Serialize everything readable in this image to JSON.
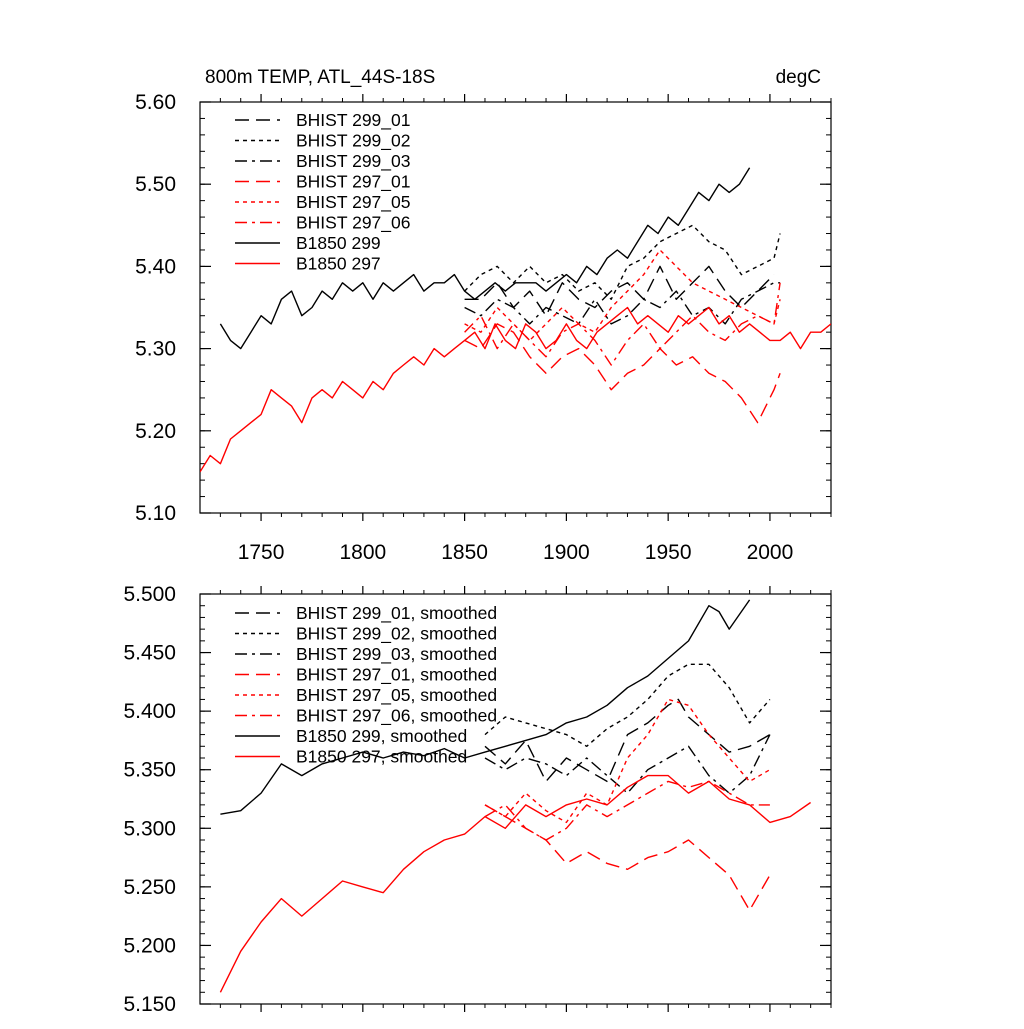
{
  "chart_data": [
    {
      "type": "line",
      "title": "800m TEMP, ATL_44S-18S",
      "units": "degC",
      "xlabel": "",
      "ylabel": "",
      "xlim": [
        1720,
        2030
      ],
      "ylim": [
        5.1,
        5.6
      ],
      "xticks": [
        1750,
        1800,
        1850,
        1900,
        1950,
        2000
      ],
      "xtick_labels": [
        "1750",
        "1800",
        "1850",
        "1900",
        "1950",
        "2000"
      ],
      "yticks": [
        5.1,
        5.2,
        5.3,
        5.4,
        5.5,
        5.6
      ],
      "ytick_labels": [
        "5.10",
        "5.20",
        "5.30",
        "5.40",
        "5.50",
        "5.60"
      ],
      "legend_position": "top-left",
      "series": [
        {
          "name": "BHIST 299_01",
          "color": "#000000",
          "dash": "dashed",
          "x": [
            1850,
            1858,
            1866,
            1874,
            1882,
            1890,
            1898,
            1906,
            1914,
            1922,
            1930,
            1938,
            1946,
            1954,
            1962,
            1970,
            1978,
            1986,
            1994,
            2002
          ],
          "values": [
            5.36,
            5.36,
            5.38,
            5.35,
            5.37,
            5.34,
            5.38,
            5.36,
            5.35,
            5.37,
            5.38,
            5.36,
            5.4,
            5.36,
            5.38,
            5.4,
            5.37,
            5.35,
            5.37,
            5.39
          ]
        },
        {
          "name": "BHIST 299_02",
          "color": "#000000",
          "dash": "dotted",
          "x": [
            1850,
            1858,
            1866,
            1874,
            1882,
            1890,
            1898,
            1906,
            1914,
            1922,
            1930,
            1938,
            1946,
            1954,
            1962,
            1970,
            1978,
            1986,
            1994,
            2002,
            2005
          ],
          "values": [
            5.37,
            5.39,
            5.4,
            5.38,
            5.4,
            5.38,
            5.39,
            5.37,
            5.38,
            5.36,
            5.4,
            5.41,
            5.43,
            5.44,
            5.45,
            5.43,
            5.42,
            5.39,
            5.4,
            5.41,
            5.44
          ]
        },
        {
          "name": "BHIST 299_03",
          "color": "#000000",
          "dash": "dashdot",
          "x": [
            1850,
            1858,
            1866,
            1874,
            1882,
            1890,
            1898,
            1906,
            1914,
            1922,
            1930,
            1938,
            1946,
            1954,
            1962,
            1970,
            1978,
            1986,
            1994,
            2002,
            2005
          ],
          "values": [
            5.35,
            5.34,
            5.36,
            5.35,
            5.33,
            5.35,
            5.34,
            5.33,
            5.36,
            5.33,
            5.34,
            5.36,
            5.35,
            5.37,
            5.34,
            5.35,
            5.33,
            5.36,
            5.37,
            5.38,
            5.38
          ]
        },
        {
          "name": "BHIST 297_01",
          "color": "#ff0000",
          "dash": "dashed",
          "x": [
            1850,
            1858,
            1866,
            1874,
            1882,
            1890,
            1898,
            1906,
            1914,
            1922,
            1930,
            1938,
            1946,
            1954,
            1962,
            1970,
            1978,
            1986,
            1994,
            2002,
            2005
          ],
          "values": [
            5.31,
            5.3,
            5.33,
            5.32,
            5.29,
            5.27,
            5.29,
            5.3,
            5.28,
            5.25,
            5.27,
            5.28,
            5.3,
            5.28,
            5.29,
            5.27,
            5.26,
            5.24,
            5.21,
            5.25,
            5.27
          ]
        },
        {
          "name": "BHIST 297_05",
          "color": "#ff0000",
          "dash": "dotted",
          "x": [
            1850,
            1858,
            1866,
            1874,
            1882,
            1890,
            1898,
            1906,
            1914,
            1922,
            1930,
            1938,
            1946,
            1954,
            1962,
            1970,
            1978,
            1986,
            1994,
            2002,
            2005
          ],
          "values": [
            5.33,
            5.32,
            5.35,
            5.33,
            5.31,
            5.33,
            5.35,
            5.33,
            5.32,
            5.35,
            5.37,
            5.39,
            5.42,
            5.4,
            5.38,
            5.37,
            5.36,
            5.35,
            5.34,
            5.33,
            5.36
          ]
        },
        {
          "name": "BHIST 297_06",
          "color": "#ff0000",
          "dash": "dashdot",
          "x": [
            1850,
            1858,
            1866,
            1874,
            1882,
            1890,
            1898,
            1906,
            1914,
            1922,
            1930,
            1938,
            1946,
            1954,
            1962,
            1970,
            1978,
            1986,
            1994,
            2002,
            2005
          ],
          "values": [
            5.32,
            5.34,
            5.3,
            5.33,
            5.31,
            5.29,
            5.32,
            5.33,
            5.31,
            5.28,
            5.31,
            5.33,
            5.3,
            5.32,
            5.34,
            5.32,
            5.31,
            5.33,
            5.34,
            5.33,
            5.38
          ]
        },
        {
          "name": "B1850 299",
          "color": "#000000",
          "dash": "solid",
          "x": [
            1730,
            1735,
            1740,
            1745,
            1750,
            1755,
            1760,
            1765,
            1770,
            1775,
            1780,
            1785,
            1790,
            1795,
            1800,
            1805,
            1810,
            1815,
            1820,
            1825,
            1830,
            1835,
            1840,
            1845,
            1850,
            1855,
            1860,
            1865,
            1870,
            1875,
            1880,
            1885,
            1890,
            1895,
            1900,
            1905,
            1910,
            1915,
            1920,
            1925,
            1930,
            1935,
            1940,
            1945,
            1950,
            1955,
            1960,
            1965,
            1970,
            1975,
            1980,
            1985,
            1990
          ],
          "values": [
            5.33,
            5.31,
            5.3,
            5.32,
            5.34,
            5.33,
            5.36,
            5.37,
            5.34,
            5.35,
            5.37,
            5.36,
            5.38,
            5.37,
            5.38,
            5.36,
            5.38,
            5.37,
            5.38,
            5.39,
            5.37,
            5.38,
            5.38,
            5.39,
            5.37,
            5.36,
            5.37,
            5.38,
            5.37,
            5.38,
            5.38,
            5.38,
            5.37,
            5.38,
            5.39,
            5.38,
            5.4,
            5.39,
            5.41,
            5.42,
            5.41,
            5.43,
            5.45,
            5.44,
            5.46,
            5.45,
            5.47,
            5.49,
            5.48,
            5.5,
            5.49,
            5.5,
            5.52
          ]
        },
        {
          "name": "B1850 297",
          "color": "#ff0000",
          "dash": "solid",
          "x": [
            1720,
            1725,
            1730,
            1735,
            1740,
            1745,
            1750,
            1755,
            1760,
            1765,
            1770,
            1775,
            1780,
            1785,
            1790,
            1795,
            1800,
            1805,
            1810,
            1815,
            1820,
            1825,
            1830,
            1835,
            1840,
            1845,
            1850,
            1855,
            1860,
            1865,
            1870,
            1875,
            1880,
            1885,
            1890,
            1895,
            1900,
            1905,
            1910,
            1915,
            1920,
            1925,
            1930,
            1935,
            1940,
            1945,
            1950,
            1955,
            1960,
            1965,
            1970,
            1975,
            1980,
            1985,
            1990,
            1995,
            2000,
            2005,
            2010,
            2015,
            2020,
            2025,
            2030
          ],
          "values": [
            5.15,
            5.17,
            5.16,
            5.19,
            5.2,
            5.21,
            5.22,
            5.25,
            5.24,
            5.23,
            5.21,
            5.24,
            5.25,
            5.24,
            5.26,
            5.25,
            5.24,
            5.26,
            5.25,
            5.27,
            5.28,
            5.29,
            5.28,
            5.3,
            5.29,
            5.3,
            5.31,
            5.32,
            5.3,
            5.33,
            5.31,
            5.3,
            5.33,
            5.32,
            5.3,
            5.31,
            5.33,
            5.31,
            5.3,
            5.32,
            5.33,
            5.34,
            5.35,
            5.33,
            5.34,
            5.33,
            5.32,
            5.34,
            5.33,
            5.34,
            5.35,
            5.33,
            5.34,
            5.32,
            5.33,
            5.32,
            5.31,
            5.31,
            5.32,
            5.3,
            5.32,
            5.32,
            5.33
          ]
        }
      ]
    },
    {
      "type": "line",
      "title": "",
      "xlabel": "",
      "ylabel": "",
      "xlim": [
        1720,
        2030
      ],
      "ylim": [
        5.15,
        5.5
      ],
      "xticks": [
        1750,
        1800,
        1850,
        1900,
        1950,
        2000
      ],
      "yticks": [
        5.15,
        5.2,
        5.25,
        5.3,
        5.35,
        5.4,
        5.45,
        5.5
      ],
      "ytick_labels": [
        "5.150",
        "5.200",
        "5.250",
        "5.300",
        "5.350",
        "5.400",
        "5.450",
        "5.500"
      ],
      "legend_position": "top-left",
      "series": [
        {
          "name": "BHIST 299_01, smoothed",
          "color": "#000000",
          "dash": "dashed",
          "x": [
            1860,
            1870,
            1880,
            1890,
            1900,
            1910,
            1920,
            1930,
            1940,
            1950,
            1955,
            1960,
            1970,
            1980,
            1990,
            2000
          ],
          "values": [
            5.37,
            5.355,
            5.375,
            5.34,
            5.36,
            5.35,
            5.34,
            5.38,
            5.39,
            5.405,
            5.41,
            5.395,
            5.38,
            5.365,
            5.37,
            5.38
          ]
        },
        {
          "name": "BHIST 299_02, smoothed",
          "color": "#000000",
          "dash": "dotted",
          "x": [
            1860,
            1870,
            1880,
            1890,
            1900,
            1910,
            1920,
            1930,
            1940,
            1950,
            1960,
            1970,
            1980,
            1990,
            2000
          ],
          "values": [
            5.38,
            5.395,
            5.39,
            5.385,
            5.38,
            5.37,
            5.385,
            5.395,
            5.41,
            5.43,
            5.44,
            5.44,
            5.42,
            5.39,
            5.41
          ]
        },
        {
          "name": "BHIST 299_03, smoothed",
          "color": "#000000",
          "dash": "dashdot",
          "x": [
            1860,
            1870,
            1880,
            1890,
            1900,
            1910,
            1920,
            1930,
            1940,
            1950,
            1960,
            1970,
            1980,
            1990,
            2000
          ],
          "values": [
            5.36,
            5.35,
            5.36,
            5.355,
            5.345,
            5.36,
            5.345,
            5.33,
            5.35,
            5.36,
            5.37,
            5.345,
            5.33,
            5.345,
            5.38
          ]
        },
        {
          "name": "BHIST 297_01, smoothed",
          "color": "#ff0000",
          "dash": "dashed",
          "x": [
            1860,
            1870,
            1880,
            1890,
            1900,
            1910,
            1920,
            1930,
            1940,
            1950,
            1960,
            1970,
            1980,
            1990,
            2000
          ],
          "values": [
            5.32,
            5.31,
            5.3,
            5.29,
            5.27,
            5.28,
            5.27,
            5.265,
            5.275,
            5.28,
            5.29,
            5.275,
            5.26,
            5.23,
            5.26
          ]
        },
        {
          "name": "BHIST 297_05, smoothed",
          "color": "#ff0000",
          "dash": "dotted",
          "x": [
            1860,
            1870,
            1880,
            1890,
            1900,
            1910,
            1920,
            1930,
            1940,
            1950,
            1960,
            1970,
            1980,
            1990,
            2000
          ],
          "values": [
            5.32,
            5.31,
            5.33,
            5.315,
            5.305,
            5.33,
            5.32,
            5.36,
            5.38,
            5.41,
            5.405,
            5.38,
            5.36,
            5.34,
            5.35
          ]
        },
        {
          "name": "BHIST 297_06, smoothed",
          "color": "#ff0000",
          "dash": "dashdot",
          "x": [
            1860,
            1870,
            1880,
            1890,
            1900,
            1910,
            1920,
            1930,
            1940,
            1950,
            1960,
            1970,
            1980,
            1990,
            2000
          ],
          "values": [
            5.31,
            5.32,
            5.3,
            5.29,
            5.3,
            5.32,
            5.31,
            5.32,
            5.33,
            5.34,
            5.335,
            5.34,
            5.33,
            5.32,
            5.32
          ]
        },
        {
          "name": "B1850 299, smoothed",
          "color": "#000000",
          "dash": "solid",
          "x": [
            1730,
            1740,
            1750,
            1760,
            1770,
            1780,
            1790,
            1800,
            1810,
            1820,
            1830,
            1840,
            1850,
            1860,
            1870,
            1880,
            1890,
            1900,
            1910,
            1920,
            1930,
            1940,
            1950,
            1960,
            1970,
            1975,
            1980,
            1990
          ],
          "values": [
            5.312,
            5.315,
            5.33,
            5.355,
            5.345,
            5.355,
            5.36,
            5.365,
            5.36,
            5.365,
            5.362,
            5.368,
            5.36,
            5.365,
            5.37,
            5.375,
            5.38,
            5.39,
            5.395,
            5.405,
            5.42,
            5.43,
            5.445,
            5.46,
            5.49,
            5.485,
            5.47,
            5.495
          ]
        },
        {
          "name": "B1850 297, smoothed",
          "color": "#ff0000",
          "dash": "solid",
          "x": [
            1730,
            1740,
            1750,
            1760,
            1770,
            1780,
            1790,
            1800,
            1810,
            1820,
            1830,
            1840,
            1850,
            1860,
            1870,
            1880,
            1890,
            1900,
            1910,
            1920,
            1930,
            1940,
            1950,
            1960,
            1970,
            1980,
            1990,
            2000,
            2010,
            2020
          ],
          "values": [
            5.16,
            5.195,
            5.22,
            5.24,
            5.225,
            5.24,
            5.255,
            5.25,
            5.245,
            5.265,
            5.28,
            5.29,
            5.295,
            5.31,
            5.3,
            5.32,
            5.31,
            5.32,
            5.325,
            5.32,
            5.335,
            5.345,
            5.345,
            5.33,
            5.34,
            5.325,
            5.32,
            5.305,
            5.31,
            5.322
          ]
        }
      ]
    }
  ]
}
